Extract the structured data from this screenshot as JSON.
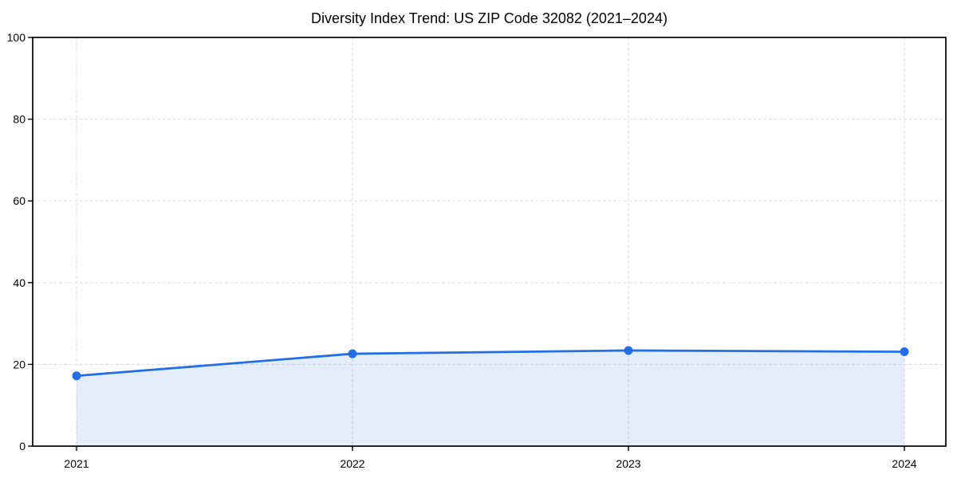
{
  "chart_data": {
    "type": "line",
    "title": "Diversity Index Trend: US ZIP Code 32082 (2021–2024)",
    "categories": [
      "2021",
      "2022",
      "2023",
      "2024"
    ],
    "series": [
      {
        "name": "Diversity Index",
        "values": [
          17.2,
          22.6,
          23.4,
          23.1
        ]
      }
    ],
    "xlabel": "",
    "ylabel": "",
    "ylim": [
      0,
      100
    ],
    "yticks": [
      0,
      20,
      40,
      60,
      80,
      100
    ],
    "grid": "dashed-both-axes",
    "legend": "none",
    "area_fill": true,
    "markers": true,
    "colors": {
      "line": "#236ee6",
      "marker": "#236ee6",
      "area": "#236ee6",
      "grid": "#dfdfdf",
      "axis": "#000000",
      "text": "#000000",
      "background": "#ffffff"
    }
  }
}
